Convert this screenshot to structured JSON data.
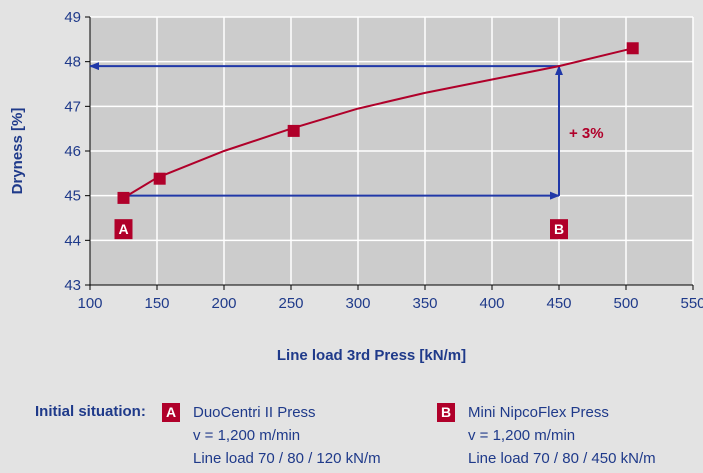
{
  "chart_data": {
    "type": "line",
    "xlabel": "Line load 3rd Press [kN/m]",
    "ylabel": "Dryness [%]",
    "xlim": [
      100,
      550
    ],
    "ylim": [
      43,
      49
    ],
    "xticks": [
      100,
      150,
      200,
      250,
      300,
      350,
      400,
      450,
      500,
      550
    ],
    "yticks": [
      43,
      44,
      45,
      46,
      47,
      48,
      49
    ],
    "grid": true,
    "points": [
      {
        "x": 125,
        "y": 44.95
      },
      {
        "x": 152,
        "y": 45.38
      },
      {
        "x": 252,
        "y": 46.45
      },
      {
        "x": 505,
        "y": 48.3
      }
    ],
    "fit_curve": [
      {
        "x": 125,
        "y": 44.95
      },
      {
        "x": 150,
        "y": 45.4
      },
      {
        "x": 200,
        "y": 46.0
      },
      {
        "x": 250,
        "y": 46.5
      },
      {
        "x": 300,
        "y": 46.95
      },
      {
        "x": 350,
        "y": 47.3
      },
      {
        "x": 400,
        "y": 47.6
      },
      {
        "x": 450,
        "y": 47.9
      },
      {
        "x": 505,
        "y": 48.3
      }
    ],
    "arrow_horizontal_lower": {
      "from": {
        "x": 125,
        "y": 45
      },
      "to": {
        "x": 450,
        "y": 45
      }
    },
    "arrow_vertical": {
      "from": {
        "x": 450,
        "y": 45
      },
      "to": {
        "x": 450,
        "y": 47.9
      }
    },
    "arrow_horizontal_upper": {
      "from": {
        "x": 450,
        "y": 47.9
      },
      "to": {
        "x": 100,
        "y": 47.9
      }
    },
    "annotation_text": "+ 3%",
    "annotation_anchor": {
      "x": 450,
      "y": 46.4
    },
    "markers": [
      {
        "label": "A",
        "x": 125,
        "y": 44.25
      },
      {
        "label": "B",
        "x": 450,
        "y": 44.25
      }
    ],
    "colors": {
      "curve": "#b0002a",
      "points": "#b0002a",
      "arrows": "#2038a8",
      "axis_text": "#1f3a8a",
      "plot_bg": "#cccccc",
      "grid": "#ffffff"
    }
  },
  "legend": {
    "heading": "Initial situation:",
    "items": [
      {
        "badge": "A",
        "lines": [
          "DuoCentri II Press",
          "v = 1,200 m/min",
          "Line load 70 / 80 / 120 kN/m"
        ]
      },
      {
        "badge": "B",
        "lines": [
          "Mini NipcoFlex Press",
          "v = 1,200 m/min",
          "Line load 70 / 80 / 450 kN/m"
        ]
      }
    ]
  }
}
